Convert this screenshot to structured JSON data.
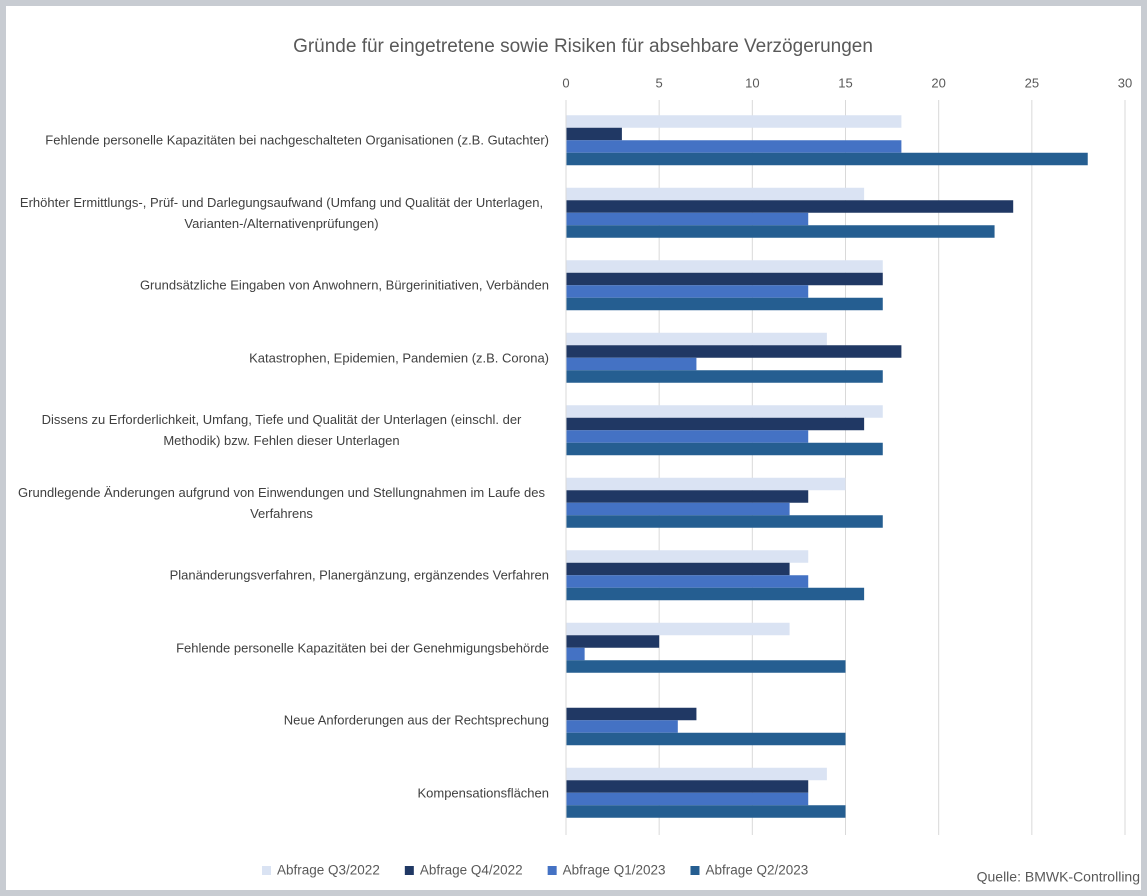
{
  "chart_data": {
    "type": "hbar",
    "title": "Gründe für eingetretene sowie Risiken für absehbare Verzögerungen",
    "source": "Quelle: BMWK-Controlling",
    "categories": [
      "Fehlende personelle Kapazitäten bei nachgeschalteten Organisationen (z.B. Gutachter)",
      "Erhöhter Ermittlungs-, Prüf- und Darlegungsaufwand (Umfang und Qualität der Unterlagen, Varianten-/Alternativenprüfungen)",
      "Grundsätzliche Eingaben von Anwohnern, Bürgerinitiativen, Verbänden",
      "Katastrophen, Epidemien, Pandemien (z.B. Corona)",
      "Dissens zu Erforderlichkeit, Umfang, Tiefe und Qualität der Unterlagen (einschl. der Methodik) bzw. Fehlen dieser Unterlagen",
      "Grundlegende Änderungen aufgrund von Einwendungen und Stellungnahmen im Laufe des Verfahrens",
      "Planänderungsverfahren, Planergänzung, ergänzendes Verfahren",
      "Fehlende personelle Kapazitäten bei der Genehmigungsbehörde",
      "Neue Anforderungen aus der Rechtsprechung",
      "Kompensationsflächen"
    ],
    "series": [
      {
        "name": "Abfrage Q3/2022",
        "color": "#dae3f3",
        "values": [
          18,
          16,
          17,
          14,
          17,
          15,
          13,
          12,
          0,
          14
        ]
      },
      {
        "name": "Abfrage Q4/2022",
        "color": "#203864",
        "values": [
          3,
          24,
          17,
          18,
          16,
          13,
          12,
          5,
          7,
          13
        ]
      },
      {
        "name": "Abfrage Q1/2023",
        "color": "#4472c4",
        "values": [
          18,
          13,
          13,
          7,
          13,
          12,
          13,
          1,
          6,
          13
        ]
      },
      {
        "name": "Abfrage Q2/2023",
        "color": "#255e91",
        "values": [
          28,
          23,
          17,
          17,
          17,
          17,
          16,
          15,
          15,
          15
        ]
      }
    ],
    "xlim": [
      0,
      30
    ],
    "xticks": [
      0,
      5,
      10,
      15,
      20,
      25,
      30
    ],
    "grid": true
  }
}
